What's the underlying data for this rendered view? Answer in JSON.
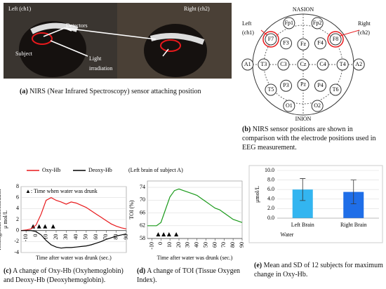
{
  "panel_a": {
    "label": "(a)",
    "caption": "NIRS (Near Infrared Spectroscopy) sensor attaching position",
    "left": "Left (ch1)",
    "right": "Right (ch2)",
    "detectors": "Detectors",
    "subject": "Subject",
    "light": [
      "Light",
      "irradiation"
    ]
  },
  "panel_b": {
    "label": "(b)",
    "caption": "NIRS sensor positions are shown in comparison with the electrode positions used in EEG measurement.",
    "nasion": "NASION",
    "inion": "INION",
    "left": [
      "Left",
      "(ch1)"
    ],
    "right": [
      "Right",
      "(ch2)"
    ],
    "electrodes": [
      "Fp1",
      "Fp2",
      "F7",
      "F3",
      "Fz",
      "F4",
      "F8",
      "A1",
      "T3",
      "C3",
      "Cz",
      "C4",
      "T4",
      "A2",
      "T5",
      "P3",
      "Pz",
      "P4",
      "T6",
      "O1",
      "O2"
    ]
  },
  "chart_data": [
    {
      "type": "line",
      "caption_label": "(c)",
      "caption": "A change of Oxy-Hb (Oxyhemoglobin) and Deoxy-Hb (Deoxyhemoglobin).",
      "note": "(Left brain of subject A)",
      "annotation": "▲: Time when water was drunk",
      "ylabel": [
        "Hemoglobin Concentration",
        "μ mol/L"
      ],
      "xlabel": "Time after water was drunk (sec.)",
      "x": [
        -15,
        -10,
        -5,
        0,
        5,
        10,
        15,
        20,
        25,
        30,
        35,
        40,
        45,
        50,
        55,
        60,
        65,
        70,
        75,
        80,
        85,
        90
      ],
      "series": [
        {
          "name": "Oxy-Hb",
          "color": "#e8191c",
          "values": [
            0,
            0.1,
            0.3,
            1,
            3,
            5.5,
            6,
            5.5,
            5.2,
            4.8,
            5.2,
            5.0,
            4.6,
            4.2,
            3.6,
            3.0,
            2.4,
            1.8,
            1.2,
            0.8,
            0.5,
            0.3
          ]
        },
        {
          "name": "Deoxy-Hb",
          "color": "#000000",
          "values": [
            0,
            0,
            0,
            -0.2,
            -0.8,
            -1.8,
            -2.6,
            -3.0,
            -3.2,
            -3.1,
            -3.1,
            -3.0,
            -2.9,
            -2.8,
            -2.6,
            -2.3,
            -2.0,
            -1.6,
            -1.3,
            -1.0,
            -0.8,
            -0.6
          ]
        }
      ],
      "drink_times": [
        -3,
        3,
        9,
        17
      ],
      "xlim": [
        -15,
        90
      ],
      "xticks": [
        -10,
        0,
        10,
        20,
        30,
        40,
        50,
        60,
        70,
        80,
        90
      ],
      "ylim": [
        -4,
        8
      ],
      "yticks": [
        -4,
        -2,
        0,
        2,
        4,
        6,
        8
      ]
    },
    {
      "type": "line",
      "caption_label": "(d)",
      "caption": "A change of TOI (Tissue Oxygen Index).",
      "ylabel": [
        "TOI (%)"
      ],
      "xlabel": "Time after water was drunk (sec.)",
      "x": [
        -15,
        -10,
        -5,
        0,
        5,
        10,
        15,
        20,
        25,
        30,
        35,
        40,
        45,
        50,
        55,
        60,
        65,
        70,
        75,
        80,
        85,
        90
      ],
      "series": [
        {
          "name": "TOI",
          "color": "#1a9a1a",
          "values": [
            62,
            62,
            62,
            63,
            67,
            71,
            73,
            73.5,
            73,
            72.5,
            72,
            71.5,
            70.5,
            69.5,
            68.5,
            67.5,
            67,
            66,
            65,
            64,
            63.5,
            63
          ]
        }
      ],
      "drink_times": [
        -3,
        3,
        9,
        17
      ],
      "xlim": [
        -15,
        90
      ],
      "xticks": [
        -10,
        0,
        10,
        20,
        30,
        40,
        50,
        60,
        70,
        80,
        90
      ],
      "ylim": [
        58,
        76
      ],
      "yticks": [
        58,
        62,
        66,
        70,
        74
      ]
    },
    {
      "type": "bar",
      "caption_label": "(e)",
      "caption": "Mean and SD of 12 subjects for maximum change in Oxy-Hb.",
      "ylabel": [
        "μmol/L"
      ],
      "xlabel": "Water",
      "categories": [
        "Left Brain",
        "Right Brain"
      ],
      "values": [
        6.0,
        5.5
      ],
      "errors": [
        2.3,
        2.5
      ],
      "colors": [
        "#33b5f0",
        "#1f6ee8"
      ],
      "ylim": [
        0,
        10
      ],
      "yticks": [
        {
          "value": 0,
          "label": "0.0"
        },
        {
          "value": 2,
          "label": "2.0"
        },
        {
          "value": 4,
          "label": "4.0"
        },
        {
          "value": 6,
          "label": "6.0"
        },
        {
          "value": 8,
          "label": "8.0"
        },
        {
          "value": 10,
          "label": "10.0"
        }
      ]
    }
  ]
}
